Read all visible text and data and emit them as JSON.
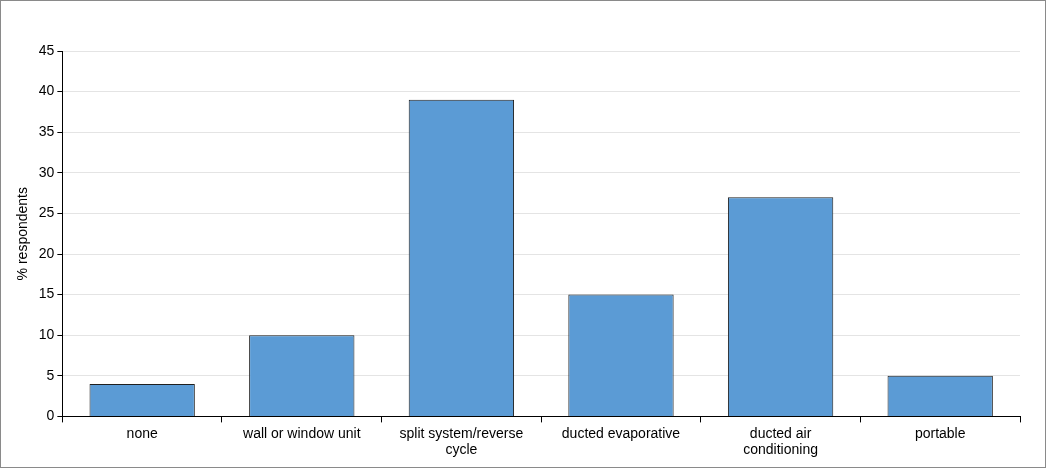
{
  "chart_data": {
    "type": "bar",
    "ylabel": "% respondents",
    "categories": [
      "none",
      "wall or window unit",
      "split system/reverse cycle",
      "ducted evaporative",
      "ducted air conditioning",
      "portable"
    ],
    "values": [
      4,
      10,
      39,
      15,
      27,
      5
    ],
    "color": "#5b9bd5",
    "ylim": [
      0,
      45
    ],
    "yticks": [
      0,
      5,
      10,
      15,
      20,
      25,
      30,
      35,
      40,
      45
    ],
    "grid": "y",
    "legend": false
  }
}
